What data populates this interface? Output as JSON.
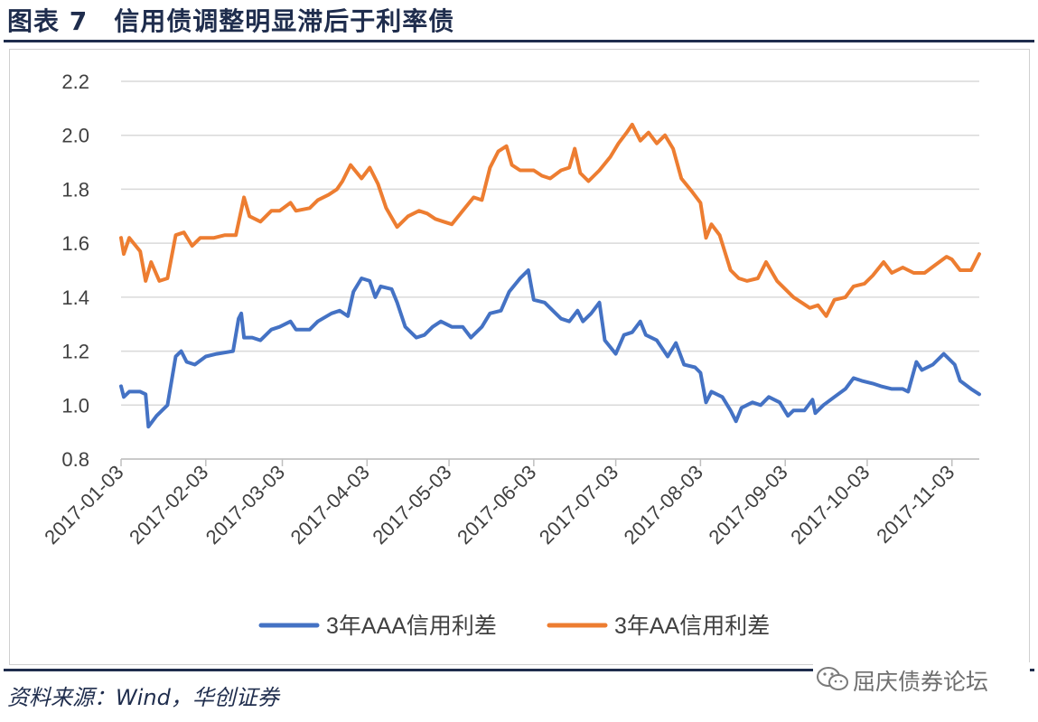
{
  "header": {
    "title": "图表 7　信用债调整明显滞后于利率债"
  },
  "footer": {
    "source": "资料来源：Wind，华创证券"
  },
  "watermark": {
    "text": "屈庆债券论坛",
    "icon": "wechat-icon"
  },
  "colors": {
    "aaa": "#4472C4",
    "aa": "#ED7D31",
    "grid": "#d9d9d9",
    "title": "#1f2d4d"
  },
  "chart_data": {
    "type": "line",
    "title": "",
    "xlabel": "",
    "ylabel": "",
    "ylim": [
      0.8,
      2.2
    ],
    "yticks": [
      "0.8",
      "1.0",
      "1.2",
      "1.4",
      "1.6",
      "1.8",
      "2.0",
      "2.2"
    ],
    "grid": "horizontal",
    "legend": "bottom",
    "xticks": [
      "2017-01-03",
      "2017-02-03",
      "2017-03-03",
      "2017-04-03",
      "2017-05-03",
      "2017-06-03",
      "2017-07-03",
      "2017-08-03",
      "2017-09-03",
      "2017-10-03",
      "2017-11-03"
    ],
    "xrange": [
      "2017-01-03",
      "2017-11-13"
    ],
    "series": [
      {
        "name": "3年AAA信用利差",
        "color": "#4472C4",
        "points": [
          [
            "2017-01-03",
            1.07
          ],
          [
            "2017-01-04",
            1.03
          ],
          [
            "2017-01-06",
            1.05
          ],
          [
            "2017-01-10",
            1.05
          ],
          [
            "2017-01-12",
            1.04
          ],
          [
            "2017-01-13",
            0.92
          ],
          [
            "2017-01-16",
            0.96
          ],
          [
            "2017-01-20",
            1.0
          ],
          [
            "2017-01-23",
            1.18
          ],
          [
            "2017-01-25",
            1.2
          ],
          [
            "2017-01-27",
            1.16
          ],
          [
            "2017-01-30",
            1.15
          ],
          [
            "2017-02-03",
            1.18
          ],
          [
            "2017-02-07",
            1.19
          ],
          [
            "2017-02-13",
            1.2
          ],
          [
            "2017-02-15",
            1.32
          ],
          [
            "2017-02-16",
            1.34
          ],
          [
            "2017-02-17",
            1.25
          ],
          [
            "2017-02-20",
            1.25
          ],
          [
            "2017-02-23",
            1.24
          ],
          [
            "2017-02-27",
            1.28
          ],
          [
            "2017-03-02",
            1.29
          ],
          [
            "2017-03-06",
            1.31
          ],
          [
            "2017-03-08",
            1.28
          ],
          [
            "2017-03-13",
            1.28
          ],
          [
            "2017-03-16",
            1.31
          ],
          [
            "2017-03-21",
            1.34
          ],
          [
            "2017-03-24",
            1.35
          ],
          [
            "2017-03-27",
            1.33
          ],
          [
            "2017-03-29",
            1.42
          ],
          [
            "2017-04-01",
            1.47
          ],
          [
            "2017-04-04",
            1.46
          ],
          [
            "2017-04-06",
            1.4
          ],
          [
            "2017-04-08",
            1.44
          ],
          [
            "2017-04-12",
            1.43
          ],
          [
            "2017-04-14",
            1.38
          ],
          [
            "2017-04-17",
            1.29
          ],
          [
            "2017-04-21",
            1.25
          ],
          [
            "2017-04-24",
            1.26
          ],
          [
            "2017-04-27",
            1.29
          ],
          [
            "2017-04-30",
            1.31
          ],
          [
            "2017-05-04",
            1.29
          ],
          [
            "2017-05-08",
            1.29
          ],
          [
            "2017-05-11",
            1.25
          ],
          [
            "2017-05-15",
            1.29
          ],
          [
            "2017-05-18",
            1.34
          ],
          [
            "2017-05-22",
            1.35
          ],
          [
            "2017-05-25",
            1.42
          ],
          [
            "2017-05-29",
            1.47
          ],
          [
            "2017-06-01",
            1.5
          ],
          [
            "2017-06-03",
            1.39
          ],
          [
            "2017-06-07",
            1.38
          ],
          [
            "2017-06-10",
            1.35
          ],
          [
            "2017-06-13",
            1.32
          ],
          [
            "2017-06-16",
            1.31
          ],
          [
            "2017-06-19",
            1.35
          ],
          [
            "2017-06-21",
            1.31
          ],
          [
            "2017-06-24",
            1.34
          ],
          [
            "2017-06-27",
            1.38
          ],
          [
            "2017-06-29",
            1.24
          ],
          [
            "2017-07-03",
            1.19
          ],
          [
            "2017-07-06",
            1.26
          ],
          [
            "2017-07-09",
            1.27
          ],
          [
            "2017-07-12",
            1.31
          ],
          [
            "2017-07-14",
            1.26
          ],
          [
            "2017-07-18",
            1.24
          ],
          [
            "2017-07-22",
            1.18
          ],
          [
            "2017-07-25",
            1.23
          ],
          [
            "2017-07-28",
            1.15
          ],
          [
            "2017-08-01",
            1.14
          ],
          [
            "2017-08-03",
            1.12
          ],
          [
            "2017-08-05",
            1.01
          ],
          [
            "2017-08-07",
            1.05
          ],
          [
            "2017-08-11",
            1.03
          ],
          [
            "2017-08-14",
            0.98
          ],
          [
            "2017-08-16",
            0.94
          ],
          [
            "2017-08-18",
            0.99
          ],
          [
            "2017-08-22",
            1.01
          ],
          [
            "2017-08-25",
            1.0
          ],
          [
            "2017-08-28",
            1.03
          ],
          [
            "2017-09-01",
            1.01
          ],
          [
            "2017-09-04",
            0.96
          ],
          [
            "2017-09-06",
            0.98
          ],
          [
            "2017-09-10",
            0.98
          ],
          [
            "2017-09-13",
            1.02
          ],
          [
            "2017-09-14",
            0.97
          ],
          [
            "2017-09-17",
            1.0
          ],
          [
            "2017-09-21",
            1.03
          ],
          [
            "2017-09-25",
            1.06
          ],
          [
            "2017-09-28",
            1.1
          ],
          [
            "2017-10-01",
            1.09
          ],
          [
            "2017-10-05",
            1.08
          ],
          [
            "2017-10-08",
            1.07
          ],
          [
            "2017-10-12",
            1.06
          ],
          [
            "2017-10-16",
            1.06
          ],
          [
            "2017-10-18",
            1.05
          ],
          [
            "2017-10-21",
            1.16
          ],
          [
            "2017-10-23",
            1.13
          ],
          [
            "2017-10-27",
            1.15
          ],
          [
            "2017-10-31",
            1.19
          ],
          [
            "2017-11-04",
            1.15
          ],
          [
            "2017-11-06",
            1.09
          ],
          [
            "2017-11-10",
            1.06
          ],
          [
            "2017-11-13",
            1.04
          ]
        ]
      },
      {
        "name": "3年AA信用利差",
        "color": "#ED7D31",
        "points": [
          [
            "2017-01-03",
            1.62
          ],
          [
            "2017-01-04",
            1.56
          ],
          [
            "2017-01-06",
            1.62
          ],
          [
            "2017-01-10",
            1.57
          ],
          [
            "2017-01-12",
            1.46
          ],
          [
            "2017-01-14",
            1.53
          ],
          [
            "2017-01-17",
            1.46
          ],
          [
            "2017-01-20",
            1.47
          ],
          [
            "2017-01-23",
            1.63
          ],
          [
            "2017-01-26",
            1.64
          ],
          [
            "2017-01-29",
            1.59
          ],
          [
            "2017-02-01",
            1.62
          ],
          [
            "2017-02-06",
            1.62
          ],
          [
            "2017-02-10",
            1.63
          ],
          [
            "2017-02-14",
            1.63
          ],
          [
            "2017-02-17",
            1.77
          ],
          [
            "2017-02-19",
            1.7
          ],
          [
            "2017-02-23",
            1.68
          ],
          [
            "2017-02-27",
            1.72
          ],
          [
            "2017-03-02",
            1.72
          ],
          [
            "2017-03-06",
            1.75
          ],
          [
            "2017-03-08",
            1.72
          ],
          [
            "2017-03-13",
            1.73
          ],
          [
            "2017-03-16",
            1.76
          ],
          [
            "2017-03-20",
            1.78
          ],
          [
            "2017-03-23",
            1.8
          ],
          [
            "2017-03-25",
            1.83
          ],
          [
            "2017-03-28",
            1.89
          ],
          [
            "2017-04-01",
            1.84
          ],
          [
            "2017-04-04",
            1.88
          ],
          [
            "2017-04-07",
            1.82
          ],
          [
            "2017-04-10",
            1.73
          ],
          [
            "2017-04-14",
            1.66
          ],
          [
            "2017-04-18",
            1.7
          ],
          [
            "2017-04-22",
            1.72
          ],
          [
            "2017-04-25",
            1.71
          ],
          [
            "2017-04-28",
            1.69
          ],
          [
            "2017-05-01",
            1.68
          ],
          [
            "2017-05-04",
            1.67
          ],
          [
            "2017-05-08",
            1.72
          ],
          [
            "2017-05-12",
            1.77
          ],
          [
            "2017-05-15",
            1.76
          ],
          [
            "2017-05-18",
            1.88
          ],
          [
            "2017-05-21",
            1.94
          ],
          [
            "2017-05-24",
            1.96
          ],
          [
            "2017-05-26",
            1.89
          ],
          [
            "2017-05-29",
            1.87
          ],
          [
            "2017-06-01",
            1.87
          ],
          [
            "2017-06-03",
            1.87
          ],
          [
            "2017-06-06",
            1.85
          ],
          [
            "2017-06-09",
            1.84
          ],
          [
            "2017-06-13",
            1.87
          ],
          [
            "2017-06-16",
            1.88
          ],
          [
            "2017-06-18",
            1.95
          ],
          [
            "2017-06-20",
            1.86
          ],
          [
            "2017-06-23",
            1.83
          ],
          [
            "2017-06-27",
            1.87
          ],
          [
            "2017-07-01",
            1.92
          ],
          [
            "2017-07-04",
            1.97
          ],
          [
            "2017-07-07",
            2.01
          ],
          [
            "2017-07-09",
            2.04
          ],
          [
            "2017-07-12",
            1.98
          ],
          [
            "2017-07-15",
            2.01
          ],
          [
            "2017-07-18",
            1.97
          ],
          [
            "2017-07-21",
            2.0
          ],
          [
            "2017-07-24",
            1.95
          ],
          [
            "2017-07-27",
            1.84
          ],
          [
            "2017-07-31",
            1.79
          ],
          [
            "2017-08-03",
            1.75
          ],
          [
            "2017-08-05",
            1.62
          ],
          [
            "2017-08-07",
            1.67
          ],
          [
            "2017-08-10",
            1.63
          ],
          [
            "2017-08-14",
            1.5
          ],
          [
            "2017-08-17",
            1.47
          ],
          [
            "2017-08-20",
            1.46
          ],
          [
            "2017-08-24",
            1.47
          ],
          [
            "2017-08-27",
            1.53
          ],
          [
            "2017-08-31",
            1.46
          ],
          [
            "2017-09-03",
            1.43
          ],
          [
            "2017-09-06",
            1.4
          ],
          [
            "2017-09-09",
            1.38
          ],
          [
            "2017-09-12",
            1.36
          ],
          [
            "2017-09-15",
            1.37
          ],
          [
            "2017-09-18",
            1.33
          ],
          [
            "2017-09-21",
            1.39
          ],
          [
            "2017-09-25",
            1.4
          ],
          [
            "2017-09-28",
            1.44
          ],
          [
            "2017-10-02",
            1.45
          ],
          [
            "2017-10-05",
            1.48
          ],
          [
            "2017-10-09",
            1.53
          ],
          [
            "2017-10-12",
            1.49
          ],
          [
            "2017-10-16",
            1.51
          ],
          [
            "2017-10-20",
            1.49
          ],
          [
            "2017-10-24",
            1.49
          ],
          [
            "2017-10-28",
            1.52
          ],
          [
            "2017-11-01",
            1.55
          ],
          [
            "2017-11-03",
            1.54
          ],
          [
            "2017-11-06",
            1.5
          ],
          [
            "2017-11-10",
            1.5
          ],
          [
            "2017-11-13",
            1.56
          ]
        ]
      }
    ]
  }
}
